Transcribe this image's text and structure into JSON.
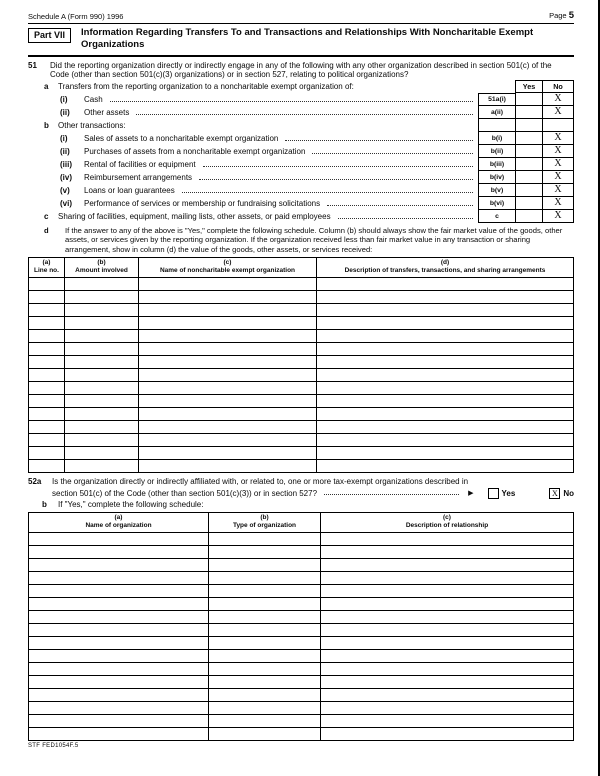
{
  "header": {
    "form_id": "Schedule A (Form 990) 1996",
    "page_word": "Page",
    "page_num": "5"
  },
  "part7": {
    "label": "Part VII",
    "title": "Information Regarding Transfers To and Transactions and Relationships With Noncharitable Exempt Organizations"
  },
  "q51": {
    "num": "51",
    "text": "Did the reporting organization directly or indirectly engage in any of the following with any other organization described in section 501(c) of the Code (other than section 501(c)(3) organizations) or in section 527, relating to political organizations?",
    "yes_header": "Yes",
    "no_header": "No",
    "a": {
      "letter": "a",
      "text": "Transfers from the reporting organization to a noncharitable exempt organization of:"
    },
    "a_items": [
      {
        "num": "(i)",
        "text": "Cash",
        "code": "51a(i)",
        "answer": "X"
      },
      {
        "num": "(ii)",
        "text": "Other assets",
        "code": "a(ii)",
        "answer": "X"
      }
    ],
    "b": {
      "letter": "b",
      "text": "Other transactions:"
    },
    "b_items": [
      {
        "num": "(i)",
        "text": "Sales of assets to a noncharitable exempt organization",
        "code": "b(i)",
        "answer": "X"
      },
      {
        "num": "(ii)",
        "text": "Purchases of assets from a noncharitable exempt organization",
        "code": "b(ii)",
        "answer": "X"
      },
      {
        "num": "(iii)",
        "text": "Rental of facilities or equipment",
        "code": "b(iii)",
        "answer": "X"
      },
      {
        "num": "(iv)",
        "text": "Reimbursement arrangements",
        "code": "b(iv)",
        "answer": "X"
      },
      {
        "num": "(v)",
        "text": "Loans or loan guarantees",
        "code": "b(v)",
        "answer": "X"
      },
      {
        "num": "(vi)",
        "text": "Performance of services or membership or fundraising solicitations",
        "code": "b(vi)",
        "answer": "X"
      }
    ],
    "c": {
      "letter": "c",
      "text": "Sharing of facilities, equipment, mailing lists, other assets, or paid employees",
      "code": "c",
      "answer": "X"
    },
    "d": {
      "letter": "d",
      "text": "If the answer to any of the above is \"Yes,\" complete the following schedule. Column (b) should always show the fair market value of the goods, other assets, or services given by the reporting organization. If the organization received less than fair market value in any transaction or sharing arrangement, show in column (d) the value of the goods, other assets, or services received:"
    }
  },
  "table1": {
    "headers": [
      {
        "code": "(a)",
        "label": "Line no."
      },
      {
        "code": "(b)",
        "label": "Amount involved"
      },
      {
        "code": "(c)",
        "label": "Name of noncharitable exempt organization"
      },
      {
        "code": "(d)",
        "label": "Description of transfers, transactions, and sharing arrangements"
      }
    ]
  },
  "q52a": {
    "num": "52a",
    "line1": "Is the organization directly or indirectly affiliated with, or related to, one or more tax-exempt organizations described in",
    "line2": "section 501(c) of the Code (other than section 501(c)(3)) or in section 527?",
    "arrow": "▶",
    "yes_label": "Yes",
    "no_label": "No",
    "yes_checked": "",
    "no_checked": "X"
  },
  "q52b": {
    "letter": "b",
    "text": "If \"Yes,\" complete the following schedule:"
  },
  "table2": {
    "headers": [
      {
        "code": "(a)",
        "label": "Name of organization"
      },
      {
        "code": "(b)",
        "label": "Type of organization"
      },
      {
        "code": "(c)",
        "label": "Description of relationship"
      }
    ]
  },
  "footer": {
    "code": "STF FED1054F.5"
  }
}
